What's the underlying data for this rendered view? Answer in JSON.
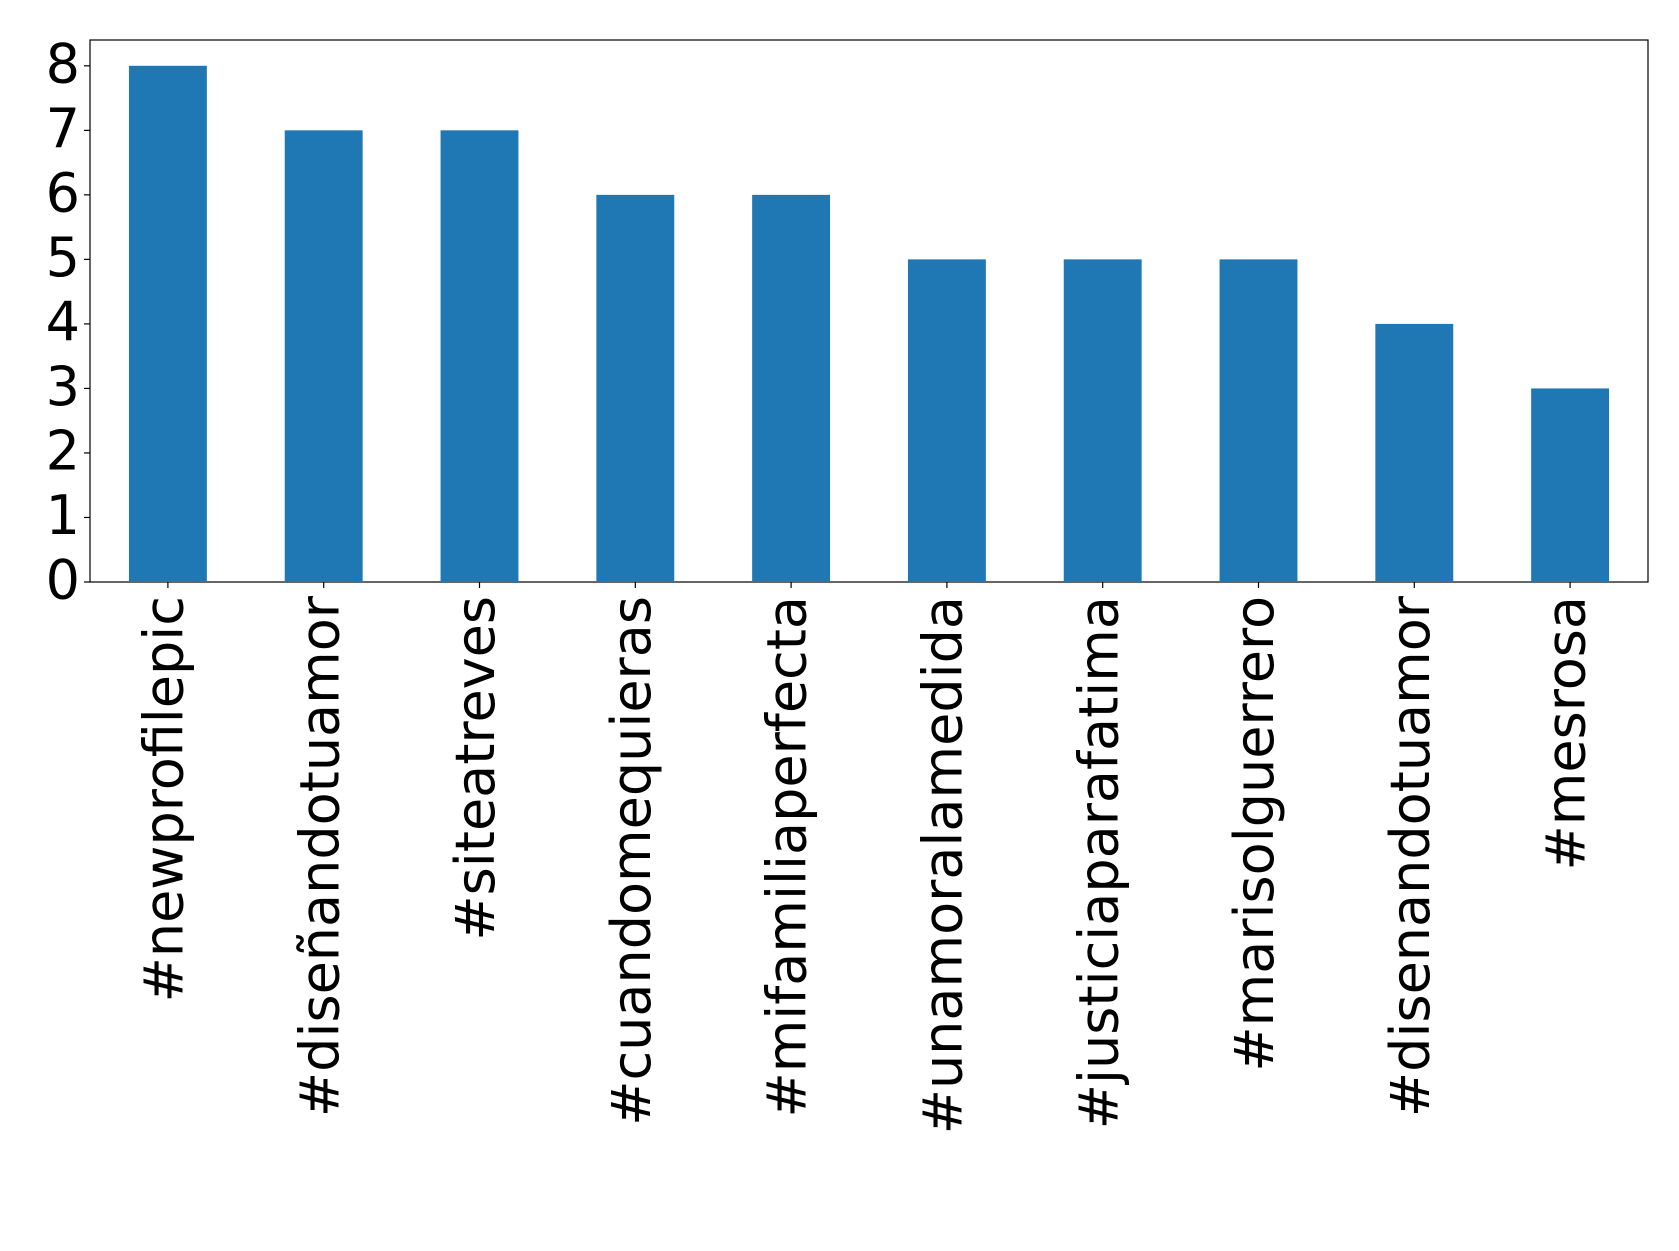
{
  "chart_data": {
    "type": "bar",
    "categories": [
      "#newprofilepic",
      "#diseñandotuamor",
      "#siteatreves",
      "#cuandomequieras",
      "#mifamiliaperfecta",
      "#unamoralamedida",
      "#justiciaparafatima",
      "#marisolguerrero",
      "#disenandotuamor",
      "#mesrosa"
    ],
    "values": [
      8,
      7,
      7,
      6,
      6,
      5,
      5,
      5,
      4,
      3
    ],
    "color": "#1f77b4",
    "ylim": [
      0,
      8.4
    ],
    "yticks": [
      0,
      1,
      2,
      3,
      4,
      5,
      6,
      7,
      8
    ],
    "grid": false
  }
}
